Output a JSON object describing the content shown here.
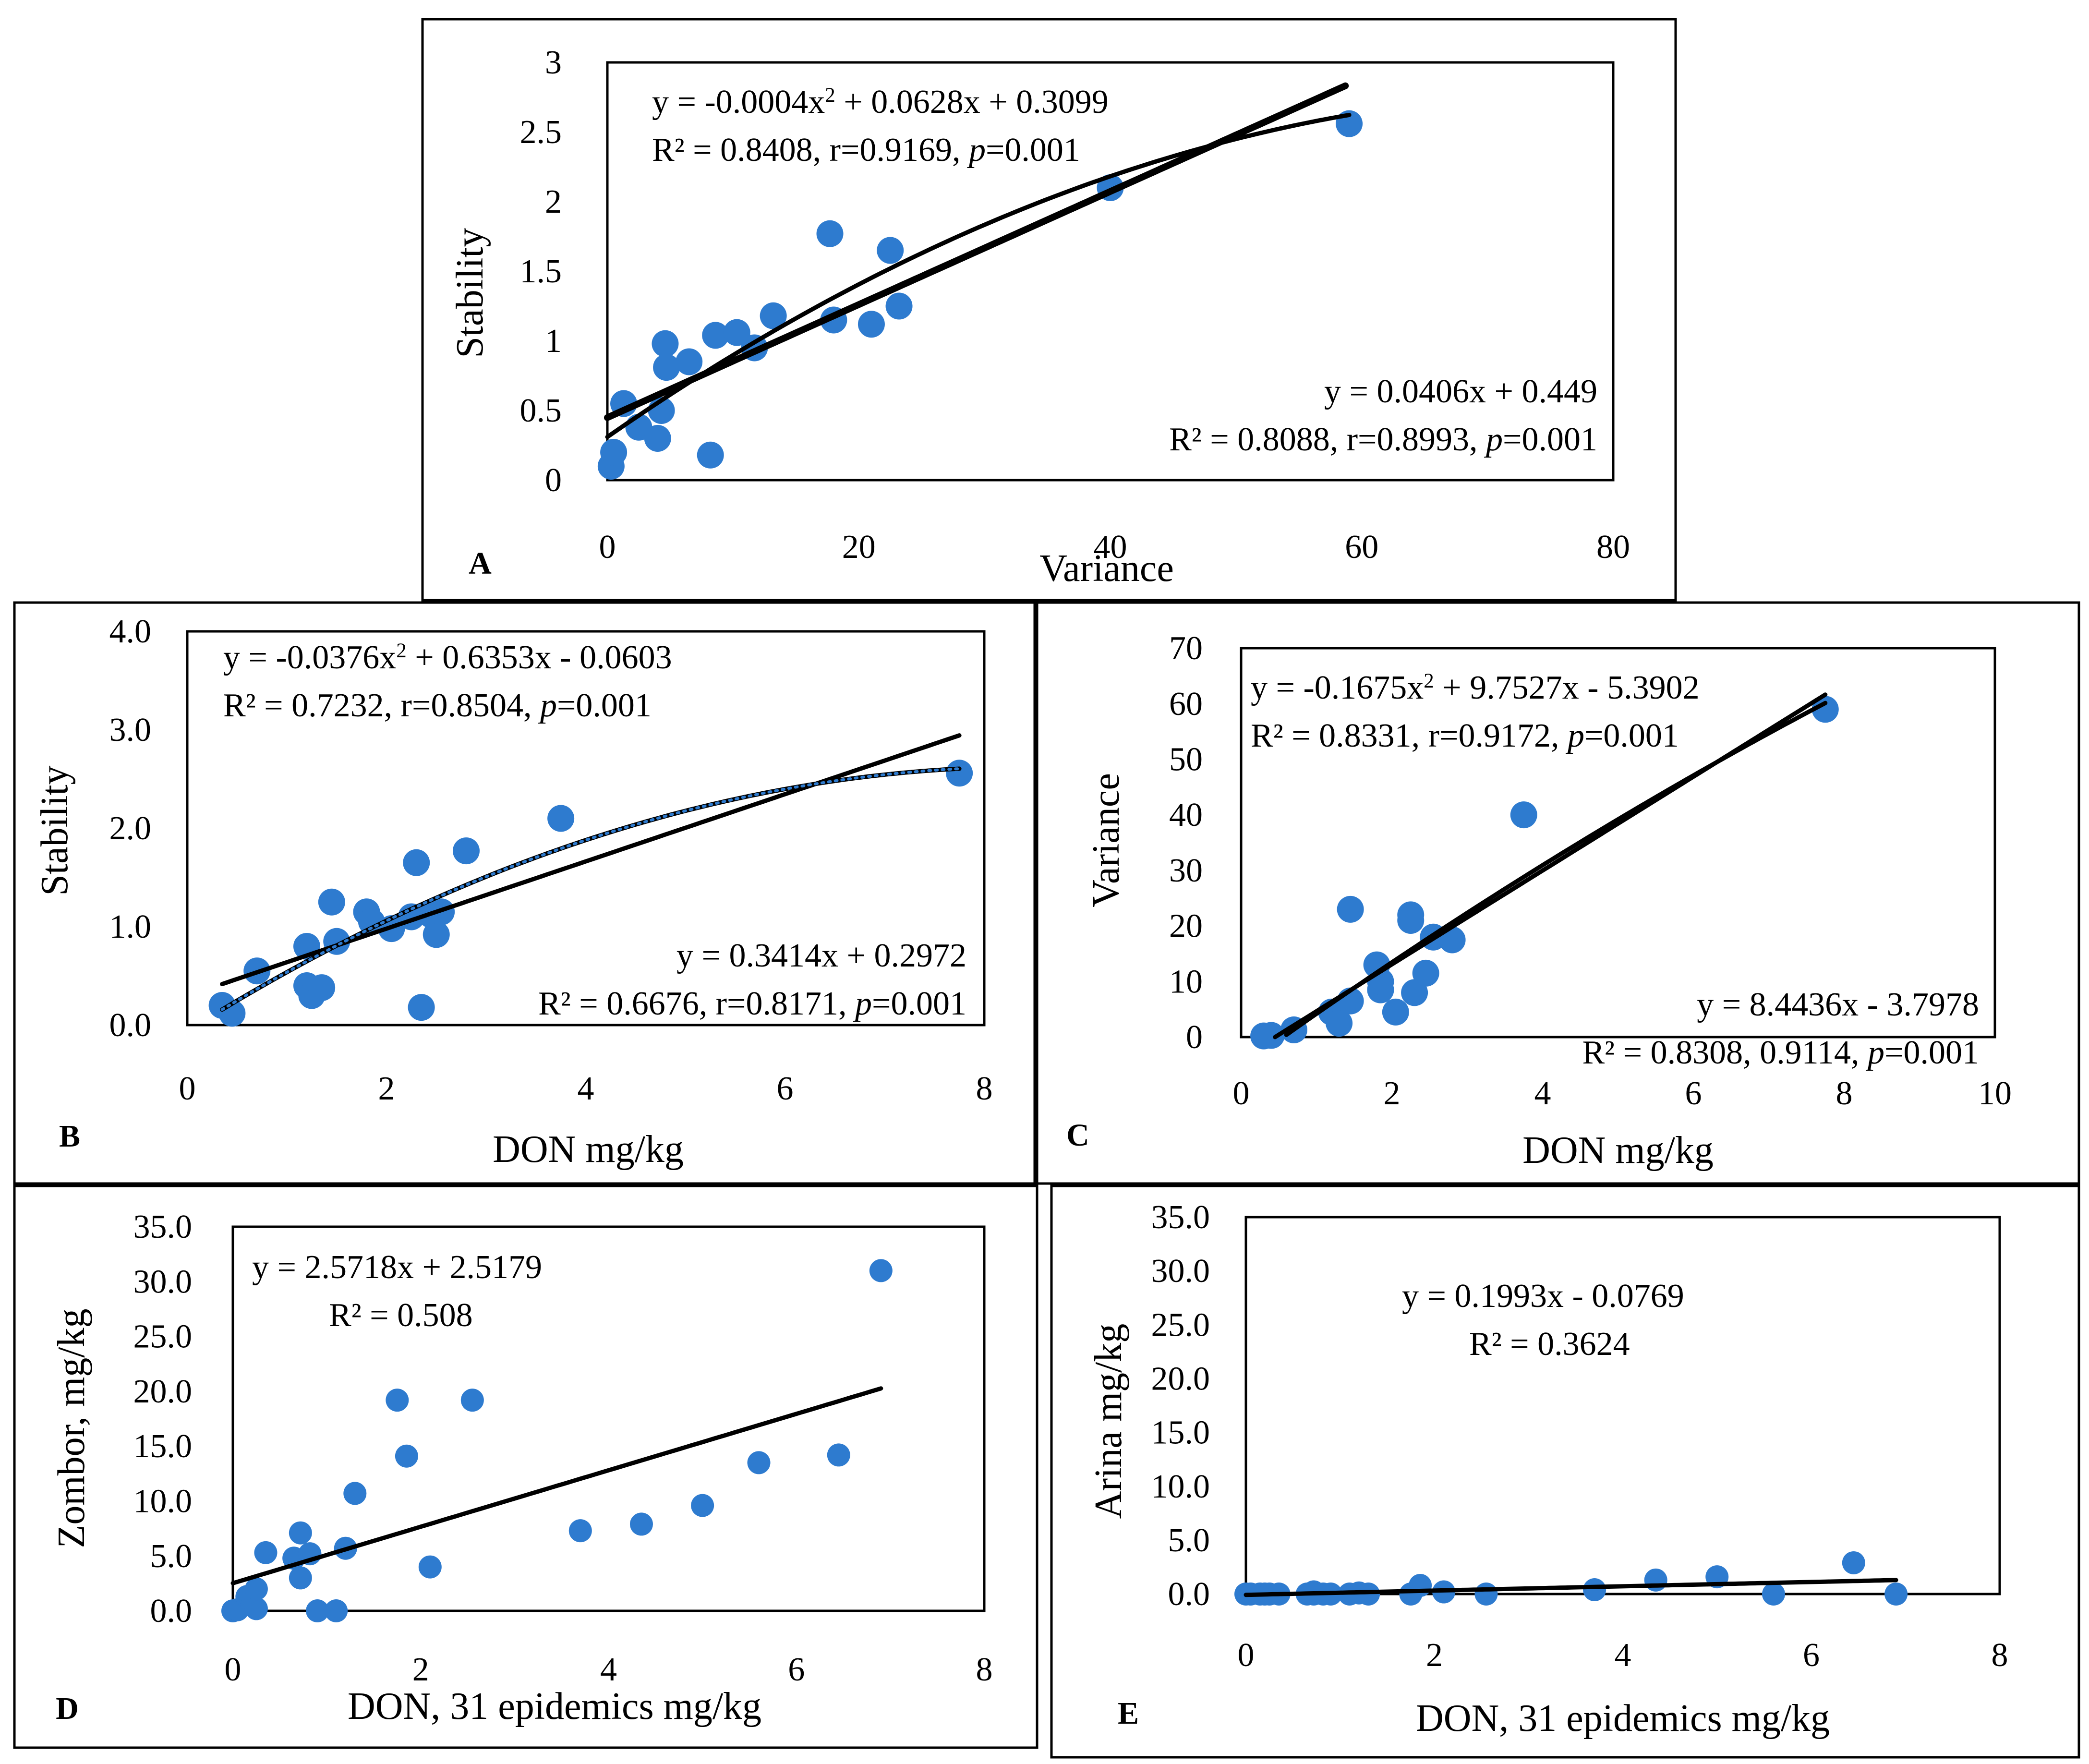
{
  "figure": {
    "background": "#ffffff",
    "marker_color": "#2e7bcf",
    "line_color": "#000000"
  },
  "chart_data": [
    {
      "id": "A",
      "type": "scatter",
      "panel_label": "A",
      "xlabel": "Variance",
      "ylabel": "Stability",
      "xlim": [
        0,
        80
      ],
      "ylim": [
        0,
        3
      ],
      "xticks": [
        0,
        20,
        40,
        60,
        80
      ],
      "yticks": [
        0,
        0.5,
        1,
        1.5,
        2,
        2.5,
        3
      ],
      "xtick_labels": [
        "0",
        "20",
        "40",
        "60",
        "80"
      ],
      "ytick_labels": [
        "0",
        "0.5",
        "1",
        "1.5",
        "2",
        "2.5",
        "3"
      ],
      "points": [
        [
          0.3,
          0.1
        ],
        [
          0.5,
          0.2
        ],
        [
          1.3,
          0.55
        ],
        [
          2.5,
          0.38
        ],
        [
          4.0,
          0.3
        ],
        [
          4.3,
          0.5
        ],
        [
          4.6,
          0.98
        ],
        [
          4.7,
          0.81
        ],
        [
          6.5,
          0.85
        ],
        [
          8.2,
          0.18
        ],
        [
          8.6,
          1.04
        ],
        [
          10.3,
          1.06
        ],
        [
          11.7,
          0.95
        ],
        [
          13.2,
          1.18
        ],
        [
          17.7,
          1.77
        ],
        [
          18.0,
          1.15
        ],
        [
          21.0,
          1.12
        ],
        [
          22.5,
          1.65
        ],
        [
          23.2,
          1.25
        ],
        [
          40.0,
          2.1
        ],
        [
          59.0,
          2.56
        ]
      ],
      "fits": [
        {
          "kind": "linear",
          "coef": [
            0.0406,
            0.449
          ],
          "x_range": [
            0,
            58.7
          ],
          "width": 14
        },
        {
          "kind": "poly2",
          "coef": [
            -0.0004,
            0.0628,
            0.3099
          ],
          "x_range": [
            0,
            59
          ],
          "width": 9
        }
      ],
      "equations": {
        "poly_eq": {
          "lines": [
            [
              "y = -0.0004x",
              "2",
              " + 0.0628x + 0.3099"
            ],
            [
              "R² = 0.8408, r=0.9169, ",
              "p",
              "=0.001"
            ]
          ]
        },
        "linear_eq": {
          "lines": [
            [
              "y = 0.0406x + 0.449"
            ],
            [
              "R² = 0.8088, r=0.8993, ",
              "p",
              "=0.001"
            ]
          ]
        }
      }
    },
    {
      "id": "B",
      "type": "scatter",
      "panel_label": "B",
      "xlabel": "DON mg/kg",
      "ylabel": "Stability",
      "xlim": [
        0,
        8
      ],
      "ylim": [
        0,
        4
      ],
      "xticks": [
        0,
        2,
        4,
        6,
        8
      ],
      "yticks": [
        0,
        1,
        2,
        3,
        4
      ],
      "xtick_labels": [
        "0",
        "2",
        "4",
        "6",
        "8"
      ],
      "ytick_labels": [
        "0.0",
        "1.0",
        "2.0",
        "3.0",
        "4.0"
      ],
      "points": [
        [
          0.35,
          0.2
        ],
        [
          0.45,
          0.12
        ],
        [
          0.7,
          0.55
        ],
        [
          1.2,
          0.8
        ],
        [
          1.2,
          0.4
        ],
        [
          1.25,
          0.3
        ],
        [
          1.35,
          0.38
        ],
        [
          1.45,
          1.25
        ],
        [
          1.5,
          0.85
        ],
        [
          1.8,
          1.15
        ],
        [
          1.85,
          1.05
        ],
        [
          2.05,
          0.98
        ],
        [
          2.25,
          1.1
        ],
        [
          2.3,
          1.65
        ],
        [
          2.35,
          0.18
        ],
        [
          2.45,
          1.12
        ],
        [
          2.5,
          0.92
        ],
        [
          2.55,
          1.15
        ],
        [
          2.8,
          1.77
        ],
        [
          3.75,
          2.1
        ],
        [
          7.75,
          2.56
        ]
      ],
      "fits": [
        {
          "kind": "linear",
          "coef": [
            0.3414,
            0.2972
          ],
          "x_range": [
            0.35,
            7.75
          ],
          "width": 9
        },
        {
          "kind": "poly2",
          "coef": [
            -0.0376,
            0.6353,
            -0.0603
          ],
          "x_range": [
            0.35,
            7.75
          ],
          "width": 9
        },
        {
          "kind": "poly2",
          "coef": [
            -0.0376,
            0.6353,
            -0.0603
          ],
          "x_range": [
            0.35,
            7.75
          ],
          "width": 6,
          "dashed": true,
          "color": "#2e7bcf"
        }
      ],
      "equations": {
        "poly_eq": {
          "lines": [
            [
              "y = -0.0376x",
              "2",
              " + 0.6353x - 0.0603"
            ],
            [
              "R² = 0.7232, r=0.8504, ",
              "p",
              "=0.001"
            ]
          ]
        },
        "linear_eq": {
          "lines": [
            [
              "y = 0.3414x + 0.2972"
            ],
            [
              "R² = 0.6676, r=0.8171, ",
              "p",
              "=0.001"
            ]
          ]
        }
      }
    },
    {
      "id": "C",
      "type": "scatter",
      "panel_label": "C",
      "xlabel": "DON mg/kg",
      "ylabel": "Variance",
      "xlim": [
        0,
        10
      ],
      "ylim": [
        0,
        70
      ],
      "xticks": [
        0,
        2,
        4,
        6,
        8,
        10
      ],
      "yticks": [
        0,
        10,
        20,
        30,
        40,
        50,
        60,
        70
      ],
      "xtick_labels": [
        "0",
        "2",
        "4",
        "6",
        "8",
        "10"
      ],
      "ytick_labels": [
        "0",
        "10",
        "20",
        "30",
        "40",
        "50",
        "60",
        "70"
      ],
      "points": [
        [
          0.3,
          0.2
        ],
        [
          0.4,
          0.3
        ],
        [
          0.7,
          1.3
        ],
        [
          1.2,
          4.5
        ],
        [
          1.3,
          2.5
        ],
        [
          1.45,
          6.5
        ],
        [
          1.45,
          23
        ],
        [
          1.8,
          13
        ],
        [
          1.85,
          8.5
        ],
        [
          1.85,
          10
        ],
        [
          2.05,
          4.5
        ],
        [
          2.25,
          22
        ],
        [
          2.25,
          21
        ],
        [
          2.3,
          8
        ],
        [
          2.45,
          11.5
        ],
        [
          2.55,
          18
        ],
        [
          2.8,
          17.5
        ],
        [
          3.75,
          40
        ],
        [
          7.75,
          59
        ]
      ],
      "fits": [
        {
          "kind": "linear",
          "coef": [
            8.4436,
            -3.7978
          ],
          "x_range": [
            0.45,
            7.75
          ],
          "width": 9
        },
        {
          "kind": "poly2",
          "coef": [
            -0.1675,
            9.7527,
            -5.3902
          ],
          "x_range": [
            0.6,
            7.75
          ],
          "width": 9
        }
      ],
      "equations": {
        "poly_eq": {
          "lines": [
            [
              "y = -0.1675x",
              "2",
              " + 9.7527x - 5.3902"
            ],
            [
              "R² = 0.8331, r=0.9172, ",
              "p",
              "=0.001"
            ]
          ]
        },
        "linear_eq": {
          "lines": [
            [
              "y = 8.4436x - 3.7978"
            ],
            [
              "R² = 0.8308, 0.9114, ",
              "p",
              "=0.001"
            ]
          ]
        }
      }
    },
    {
      "id": "D",
      "type": "scatter",
      "panel_label": "D",
      "xlabel": "DON, 31 epidemics mg/kg",
      "ylabel": "Zombor, mg/kg",
      "xlim": [
        0,
        8
      ],
      "ylim": [
        0,
        35
      ],
      "xticks": [
        0,
        2,
        4,
        6,
        8
      ],
      "yticks": [
        0,
        5,
        10,
        15,
        20,
        25,
        30,
        35
      ],
      "xtick_labels": [
        "0",
        "2",
        "4",
        "6",
        "8"
      ],
      "ytick_labels": [
        "0.0",
        "5.0",
        "10.0",
        "15.0",
        "20.0",
        "25.0",
        "30.0",
        "35.0"
      ],
      "points": [
        [
          0,
          0
        ],
        [
          0.05,
          0.1
        ],
        [
          0.15,
          1.3
        ],
        [
          0.2,
          0.5
        ],
        [
          0.25,
          0.2
        ],
        [
          0.25,
          2
        ],
        [
          0.35,
          5.3
        ],
        [
          0.65,
          4.8
        ],
        [
          0.72,
          3
        ],
        [
          0.72,
          7.1
        ],
        [
          0.82,
          5.2
        ],
        [
          0.9,
          0
        ],
        [
          1.1,
          0
        ],
        [
          1.2,
          5.7
        ],
        [
          1.3,
          10.7
        ],
        [
          1.75,
          19.2
        ],
        [
          1.85,
          14.1
        ],
        [
          2.1,
          4
        ],
        [
          2.55,
          19.2
        ],
        [
          3.7,
          7.3
        ],
        [
          4.35,
          7.9
        ],
        [
          5.0,
          9.6
        ],
        [
          5.6,
          13.5
        ],
        [
          6.45,
          14.2
        ],
        [
          6.9,
          31
        ]
      ],
      "fits": [
        {
          "kind": "linear",
          "coef": [
            2.5718,
            2.5179
          ],
          "x_range": [
            0,
            6.9
          ],
          "width": 9
        }
      ],
      "equations": {
        "linear_eq": {
          "lines": [
            [
              "y = 2.5718x + 2.5179"
            ],
            [
              "R² = 0.508"
            ]
          ]
        }
      }
    },
    {
      "id": "E",
      "type": "scatter",
      "panel_label": "E",
      "xlabel": "DON, 31 epidemics mg/kg",
      "ylabel": "Arina mg/kg",
      "xlim": [
        0,
        8
      ],
      "ylim": [
        0,
        35
      ],
      "xticks": [
        0,
        2,
        4,
        6,
        8
      ],
      "yticks": [
        0,
        5,
        10,
        15,
        20,
        25,
        30,
        35
      ],
      "xtick_labels": [
        "0",
        "2",
        "4",
        "6",
        "8"
      ],
      "ytick_labels": [
        "0.0",
        "5.0",
        "10.0",
        "15.0",
        "20.0",
        "25.0",
        "30.0",
        "35.0"
      ],
      "points": [
        [
          0,
          0
        ],
        [
          0.05,
          0
        ],
        [
          0.15,
          0
        ],
        [
          0.2,
          0
        ],
        [
          0.25,
          0
        ],
        [
          0.35,
          0
        ],
        [
          0.65,
          0
        ],
        [
          0.72,
          0.2
        ],
        [
          0.72,
          0
        ],
        [
          0.82,
          0
        ],
        [
          0.9,
          0
        ],
        [
          1.1,
          0
        ],
        [
          1.2,
          0.1
        ],
        [
          1.3,
          0
        ],
        [
          1.75,
          0
        ],
        [
          1.85,
          0.8
        ],
        [
          2.1,
          0.2
        ],
        [
          2.55,
          0
        ],
        [
          3.7,
          0.4
        ],
        [
          4.35,
          1.3
        ],
        [
          5.0,
          1.6
        ],
        [
          5.6,
          0
        ],
        [
          6.45,
          2.9
        ],
        [
          6.9,
          0
        ]
      ],
      "fits": [
        {
          "kind": "linear",
          "coef": [
            0.1993,
            -0.0769
          ],
          "x_range": [
            0,
            6.9
          ],
          "width": 9
        }
      ],
      "equations": {
        "linear_eq": {
          "lines": [
            [
              "y = 0.1993x - 0.0769"
            ],
            [
              "R² = 0.3624"
            ]
          ]
        }
      }
    }
  ]
}
